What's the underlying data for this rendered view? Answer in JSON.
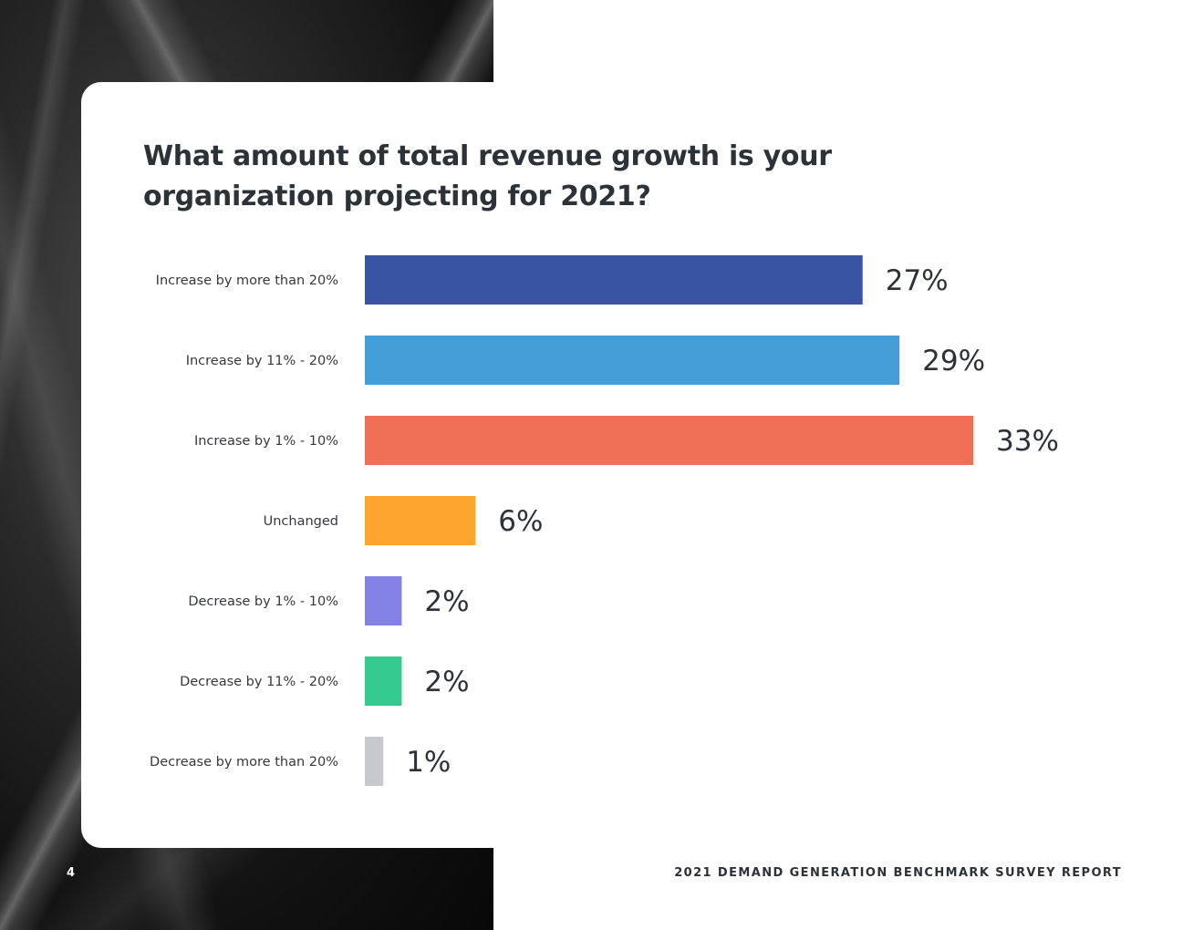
{
  "page_number": "4",
  "report_title": "2021 DEMAND GENERATION BENCHMARK SURVEY REPORT",
  "chart_data": {
    "type": "bar",
    "orientation": "horizontal",
    "title": "What amount of total revenue growth is your organization projecting for 2021?",
    "categories": [
      "Increase by more than 20%",
      "Increase by 11% - 20%",
      "Increase by 1% - 10%",
      "Unchanged",
      "Decrease by 1% - 10%",
      "Decrease by 11% - 20%",
      "Decrease by more than 20%"
    ],
    "values": [
      27,
      29,
      33,
      6,
      2,
      2,
      1
    ],
    "value_labels": [
      "27%",
      "29%",
      "33%",
      "6%",
      "2%",
      "2%",
      "1%"
    ],
    "colors": [
      "#3a54a4",
      "#459ed8",
      "#f07057",
      "#fea530",
      "#8381e2",
      "#34c98e",
      "#c6cacf"
    ],
    "xlabel": "",
    "ylabel": "",
    "xlim": [
      0,
      33
    ],
    "grid": false,
    "legend": "none"
  }
}
